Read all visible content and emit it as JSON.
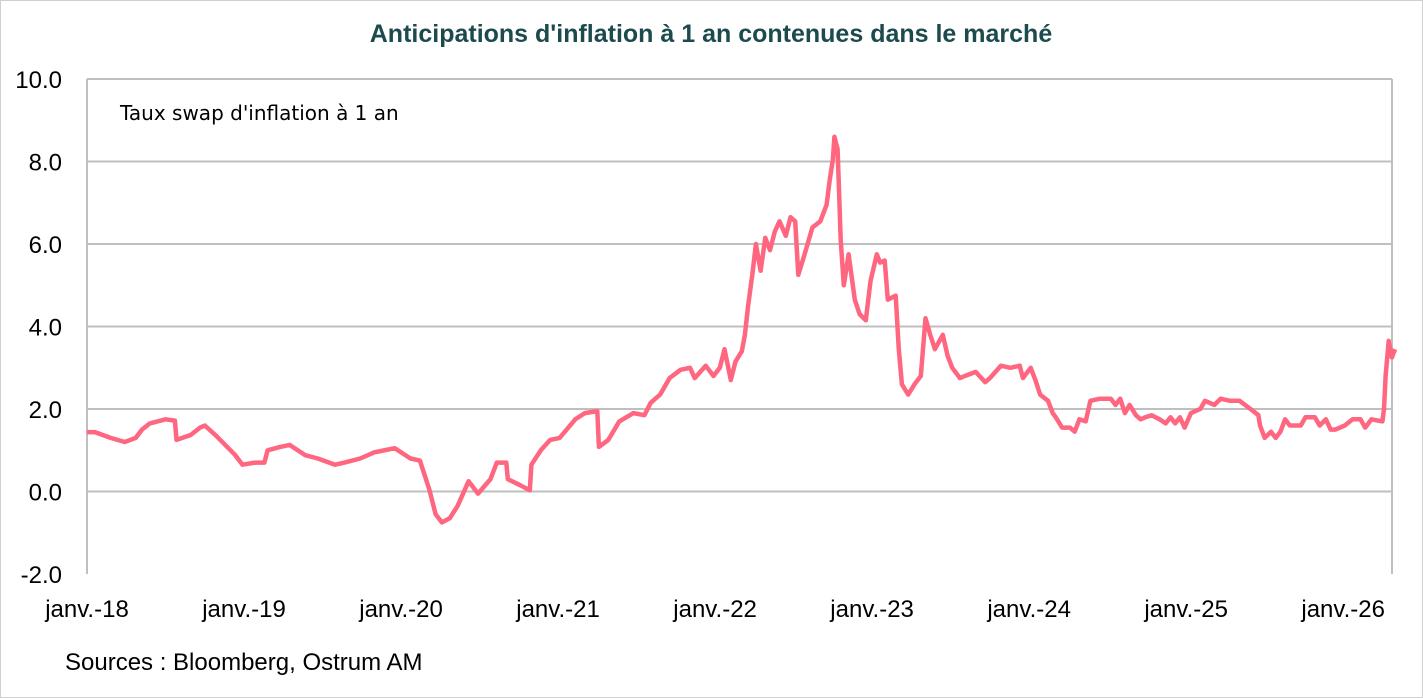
{
  "chart_data": {
    "type": "line",
    "title": "Anticipations d'inflation à 1 an contenues dans le marché",
    "annotation": "Taux swap d'inflation à 1 an",
    "source": "Sources : Bloomberg, Ostrum AM",
    "xlabel": "",
    "ylabel": "",
    "ylim": [
      -2,
      10
    ],
    "xlim": [
      2018,
      2026.33
    ],
    "grid": true,
    "y_ticks": [
      {
        "value": 10,
        "label": "10.0"
      },
      {
        "value": 8,
        "label": "8.0"
      },
      {
        "value": 6,
        "label": "6.0"
      },
      {
        "value": 4,
        "label": "4.0"
      },
      {
        "value": 2,
        "label": "2.0"
      },
      {
        "value": 0,
        "label": "0.0"
      },
      {
        "value": -2,
        "label": "-2.0"
      }
    ],
    "x_ticks": [
      {
        "value": 2018,
        "label": "janv.-18"
      },
      {
        "value": 2019,
        "label": "janv.-19"
      },
      {
        "value": 2020,
        "label": "janv.-20"
      },
      {
        "value": 2021,
        "label": "janv.-21"
      },
      {
        "value": 2022,
        "label": "janv.-22"
      },
      {
        "value": 2023,
        "label": "janv.-23"
      },
      {
        "value": 2024,
        "label": "janv.-24"
      },
      {
        "value": 2025,
        "label": "janv.-25"
      },
      {
        "value": 2026,
        "label": "janv.-26"
      }
    ],
    "series": [
      {
        "name": "Taux swap d'inflation à 1 an",
        "color": "#ff6680",
        "x": [
          2018.0,
          2018.05,
          2018.15,
          2018.24,
          2018.31,
          2018.35,
          2018.4,
          2018.5,
          2018.56,
          2018.57,
          2018.66,
          2018.72,
          2018.75,
          2018.82,
          2018.88,
          2018.94,
          2018.99,
          2019.07,
          2019.13,
          2019.15,
          2019.23,
          2019.29,
          2019.39,
          2019.47,
          2019.58,
          2019.64,
          2019.74,
          2019.83,
          2019.96,
          2020.06,
          2020.12,
          2020.18,
          2020.22,
          2020.26,
          2020.31,
          2020.36,
          2020.43,
          2020.49,
          2020.57,
          2020.61,
          2020.67,
          2020.68,
          2020.76,
          2020.82,
          2020.83,
          2020.89,
          2020.95,
          2021.01,
          2021.11,
          2021.17,
          2021.25,
          2021.26,
          2021.32,
          2021.39,
          2021.48,
          2021.55,
          2021.59,
          2021.65,
          2021.71,
          2021.78,
          2021.84,
          2021.87,
          2021.94,
          2021.99,
          2022.03,
          2022.06,
          2022.1,
          2022.13,
          2022.17,
          2022.19,
          2022.21,
          2022.24,
          2022.26,
          2022.29,
          2022.32,
          2022.35,
          2022.38,
          2022.41,
          2022.45,
          2022.48,
          2022.51,
          2022.53,
          2022.57,
          2022.62,
          2022.67,
          2022.71,
          2022.73,
          2022.75,
          2022.76,
          2022.78,
          2022.8,
          2022.82,
          2022.85,
          2022.89,
          2022.92,
          2022.96,
          2022.99,
          2023.03,
          2023.05,
          2023.08,
          2023.1,
          2023.15,
          2023.17,
          2023.19,
          2023.23,
          2023.27,
          2023.31,
          2023.34,
          2023.37,
          2023.4,
          2023.45,
          2023.48,
          2023.51,
          2023.56,
          2023.59,
          2023.66,
          2023.72,
          2023.75,
          2023.82,
          2023.88,
          2023.94,
          2023.96,
          2024.01,
          2024.04,
          2024.07,
          2024.12,
          2024.15,
          2024.17,
          2024.21,
          2024.26,
          2024.29,
          2024.32,
          2024.36,
          2024.39,
          2024.45,
          2024.52,
          2024.55,
          2024.58,
          2024.61,
          2024.64,
          2024.68,
          2024.71,
          2024.74,
          2024.78,
          2024.83,
          2024.87,
          2024.9,
          2024.93,
          2024.96,
          2024.99,
          2025.03,
          2025.09,
          2025.12,
          2025.18,
          2025.22,
          2025.28,
          2025.34,
          2025.41,
          2025.46,
          2025.47,
          2025.5,
          2025.54,
          2025.57,
          2025.6,
          2025.63,
          2025.66,
          2025.73,
          2025.76,
          2025.82,
          2025.85,
          2025.89,
          2025.92,
          2025.95,
          2026.01,
          2026.06,
          2026.11,
          2026.14,
          2026.18,
          2026.25,
          2026.26,
          2026.27,
          2026.29,
          2026.31,
          2026.33
        ],
        "y": [
          1.44,
          1.44,
          1.3,
          1.2,
          1.3,
          1.5,
          1.65,
          1.75,
          1.72,
          1.25,
          1.37,
          1.55,
          1.6,
          1.36,
          1.13,
          0.9,
          0.65,
          0.7,
          0.7,
          1.0,
          1.08,
          1.13,
          0.88,
          0.8,
          0.65,
          0.7,
          0.8,
          0.95,
          1.05,
          0.8,
          0.75,
          0.05,
          -0.55,
          -0.75,
          -0.65,
          -0.35,
          0.25,
          -0.05,
          0.3,
          0.7,
          0.7,
          0.3,
          0.15,
          0.03,
          0.65,
          1.0,
          1.25,
          1.3,
          1.75,
          1.9,
          1.95,
          1.08,
          1.25,
          1.7,
          1.9,
          1.85,
          2.15,
          2.35,
          2.75,
          2.95,
          3.0,
          2.75,
          3.05,
          2.8,
          3.0,
          3.45,
          2.7,
          3.15,
          3.4,
          3.8,
          4.5,
          5.35,
          6.0,
          5.35,
          6.15,
          5.85,
          6.3,
          6.55,
          6.2,
          6.65,
          6.55,
          5.25,
          5.75,
          6.4,
          6.55,
          6.95,
          7.55,
          8.05,
          8.6,
          8.3,
          6.1,
          5.0,
          5.75,
          4.65,
          4.3,
          4.15,
          5.1,
          5.75,
          5.55,
          5.6,
          4.65,
          4.75,
          3.45,
          2.6,
          2.35,
          2.6,
          2.8,
          4.2,
          3.8,
          3.45,
          3.8,
          3.3,
          3.0,
          2.75,
          2.8,
          2.9,
          2.65,
          2.75,
          3.05,
          3.0,
          3.05,
          2.75,
          3.0,
          2.7,
          2.35,
          2.2,
          1.9,
          1.8,
          1.55,
          1.55,
          1.45,
          1.75,
          1.7,
          2.2,
          2.25,
          2.25,
          2.1,
          2.25,
          1.9,
          2.1,
          1.85,
          1.75,
          1.8,
          1.85,
          1.75,
          1.65,
          1.8,
          1.65,
          1.8,
          1.55,
          1.9,
          2.0,
          2.2,
          2.1,
          2.25,
          2.2,
          2.2,
          2.0,
          1.85,
          1.6,
          1.3,
          1.45,
          1.3,
          1.45,
          1.75,
          1.6,
          1.6,
          1.8,
          1.8,
          1.6,
          1.75,
          1.5,
          1.5,
          1.6,
          1.75,
          1.75,
          1.55,
          1.75,
          1.7,
          2.0,
          2.8,
          3.65,
          3.25,
          3.45
        ]
      }
    ]
  }
}
